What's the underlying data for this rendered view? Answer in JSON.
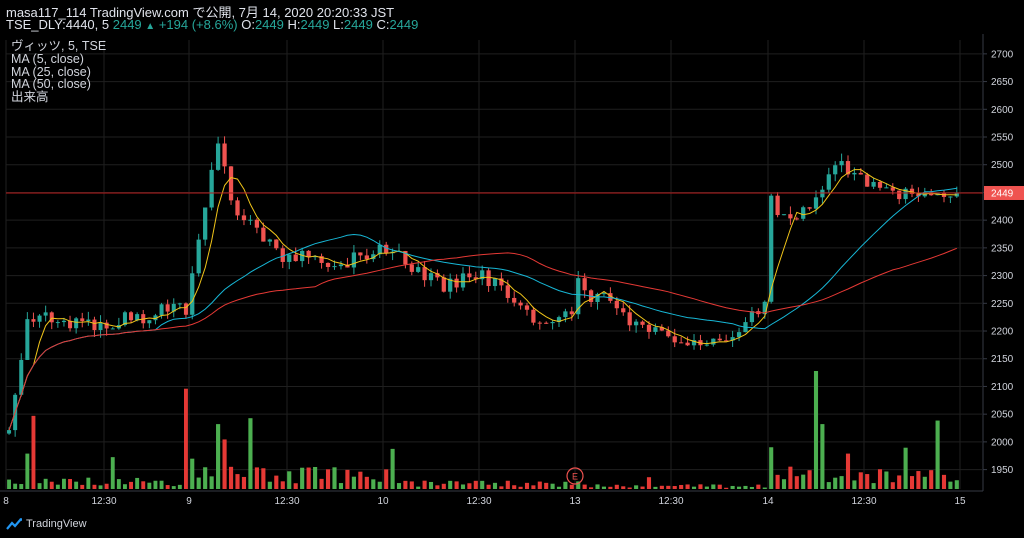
{
  "header": {
    "line1": "masa117_114 TradingView.com で公開, 7月 14, 2020 20:20:33 JST",
    "symbol": "TSE_DLY:4440, 5",
    "last": "2449",
    "arrow": "▲",
    "change": "+194 (+8.6%)",
    "o_label": "O:",
    "o": "2449",
    "h_label": "H:",
    "h": "2449",
    "l_label": "L:",
    "l": "2449",
    "c_label": "C:",
    "c": "2449"
  },
  "legend": {
    "main": "ヴィッツ, 5, TSE",
    "ma5": "MA (5, close)",
    "ma25": "MA (25, close)",
    "ma50": "MA (50, close)",
    "volume": "出来高"
  },
  "footer": {
    "brand": "TradingView"
  },
  "colors": {
    "up": "#26a69a",
    "down": "#ef5350",
    "vol_up": "#4caf50",
    "vol_down": "#e53935",
    "ma5": "#f0c419",
    "ma25": "#17b7d6",
    "ma50": "#e53935",
    "price_line": "#b71c1c",
    "grid": "#1f1f1f",
    "text": "#d1d4dc"
  },
  "chart_data": {
    "type": "candlestick",
    "interval": "5",
    "ylim": [
      1915,
      2725
    ],
    "yticks": [
      1950,
      2000,
      2050,
      2100,
      2150,
      2200,
      2250,
      2300,
      2350,
      2400,
      2450,
      2500,
      2550,
      2600,
      2650,
      2700
    ],
    "grid": true,
    "last_price": 2449,
    "x_ticks": [
      "8",
      "12:30",
      "9",
      "12:30",
      "10",
      "12:30",
      "13",
      "12:30",
      "14",
      "12:30",
      "15"
    ],
    "event_marker": {
      "label": "E",
      "at_tick": 6
    },
    "days": [
      {
        "label": "8",
        "path": [
          [
            0,
            2025
          ],
          [
            0.04,
            2090
          ],
          [
            0.08,
            2175
          ],
          [
            0.11,
            2240
          ],
          [
            0.14,
            2220
          ],
          [
            0.2,
            2230
          ],
          [
            0.3,
            2205
          ],
          [
            0.45,
            2215
          ],
          [
            0.55,
            2200
          ],
          [
            0.65,
            2230
          ],
          [
            0.75,
            2215
          ],
          [
            0.85,
            2235
          ],
          [
            1,
            2240
          ]
        ]
      },
      {
        "label": "9",
        "path": [
          [
            0,
            2310
          ],
          [
            0.08,
            2440
          ],
          [
            0.13,
            2555
          ],
          [
            0.18,
            2480
          ],
          [
            0.23,
            2420
          ],
          [
            0.3,
            2400
          ],
          [
            0.38,
            2370
          ],
          [
            0.5,
            2320
          ],
          [
            0.6,
            2350
          ],
          [
            0.7,
            2330
          ],
          [
            0.8,
            2315
          ],
          [
            0.9,
            2340
          ],
          [
            1,
            2345
          ]
        ]
      },
      {
        "label": "10",
        "path": [
          [
            0,
            2350
          ],
          [
            0.1,
            2330
          ],
          [
            0.2,
            2300
          ],
          [
            0.3,
            2280
          ],
          [
            0.4,
            2290
          ],
          [
            0.5,
            2300
          ],
          [
            0.6,
            2285
          ],
          [
            0.7,
            2260
          ],
          [
            0.8,
            2225
          ],
          [
            0.9,
            2215
          ],
          [
            1,
            2230
          ]
        ]
      },
      {
        "label": "13",
        "path": [
          [
            0,
            2300
          ],
          [
            0.08,
            2250
          ],
          [
            0.16,
            2270
          ],
          [
            0.25,
            2230
          ],
          [
            0.35,
            2200
          ],
          [
            0.5,
            2190
          ],
          [
            0.7,
            2180
          ],
          [
            0.85,
            2200
          ],
          [
            1,
            2255
          ]
        ]
      },
      {
        "label": "14",
        "path": [
          [
            0,
            2450
          ],
          [
            0.06,
            2400
          ],
          [
            0.12,
            2390
          ],
          [
            0.2,
            2430
          ],
          [
            0.3,
            2480
          ],
          [
            0.38,
            2500
          ],
          [
            0.48,
            2480
          ],
          [
            0.56,
            2465
          ],
          [
            0.66,
            2450
          ],
          [
            0.76,
            2445
          ],
          [
            0.86,
            2440
          ],
          [
            1,
            2449
          ]
        ]
      }
    ],
    "volume": {
      "session_means": [
        0.06,
        0.12,
        0.045,
        0.025,
        0.12
      ],
      "spikes": [
        [
          3,
          0.3
        ],
        [
          4,
          0.62
        ],
        [
          17,
          0.27
        ],
        [
          29,
          0.85
        ],
        [
          34,
          0.55
        ],
        [
          35,
          0.42
        ],
        [
          39,
          0.6
        ],
        [
          45,
          0.15
        ],
        [
          61,
          0.34
        ],
        [
          101,
          0.1
        ],
        [
          127,
          1.0
        ],
        [
          128,
          0.55
        ],
        [
          132,
          0.3
        ],
        [
          141,
          0.35
        ],
        [
          146,
          0.58
        ]
      ]
    },
    "series": [
      {
        "name": "MA (5, close)",
        "period": 5
      },
      {
        "name": "MA (25, close)",
        "period": 25
      },
      {
        "name": "MA (50, close)",
        "period": 50
      }
    ]
  }
}
